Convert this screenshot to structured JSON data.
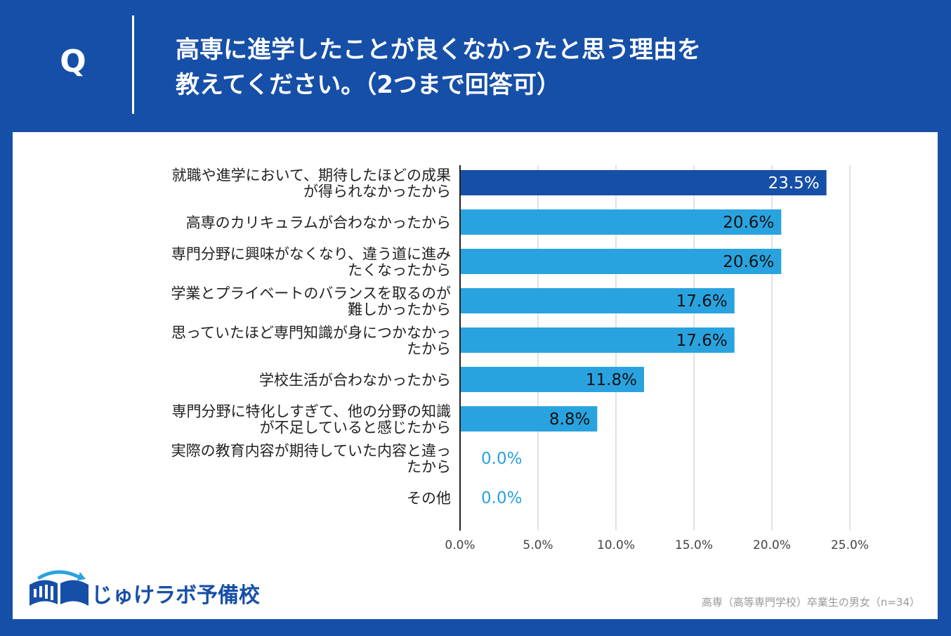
{
  "header": {
    "q_label": "Q",
    "title": "高専に進学したことが良くなかったと思う理由を\n教えてください。（2つまで回答可）"
  },
  "colors": {
    "header_bg": "#164fa7",
    "top_bar": "#164fa7",
    "bar": "#29a3df",
    "zero_label": "#29a3df",
    "grid": "#d9d9d9"
  },
  "chart_data": {
    "type": "bar",
    "orientation": "horizontal",
    "categories": [
      [
        "就職や進学において、期待したほどの成果",
        "が得られなかったから"
      ],
      [
        "高専のカリキュラムが合わなかったから"
      ],
      [
        "専門分野に興味がなくなり、違う道に進み",
        "たくなったから"
      ],
      [
        "学業とプライベートのバランスを取るのが",
        "難しかったから"
      ],
      [
        "思っていたほど専門知識が身につかなかっ",
        "たから"
      ],
      [
        "学校生活が合わなかったから"
      ],
      [
        "専門分野に特化しすぎて、他の分野の知識",
        "が不足していると感じたから"
      ],
      [
        "実際の教育内容が期待していた内容と違っ",
        "たから"
      ],
      [
        "その他"
      ]
    ],
    "values": [
      23.5,
      20.6,
      20.6,
      17.6,
      17.6,
      11.8,
      8.8,
      0.0,
      0.0
    ],
    "value_labels": [
      "23.5%",
      "20.6%",
      "20.6%",
      "17.6%",
      "17.6%",
      "11.8%",
      "8.8%",
      "0.0%",
      "0.0%"
    ],
    "xlim": [
      0,
      25
    ],
    "x_ticks": [
      "0.0%",
      "5.0%",
      "10.0%",
      "15.0%",
      "20.0%",
      "25.0%"
    ],
    "grid": true,
    "legend": false
  },
  "footer": {
    "logo_text": "じゅけラボ予備校",
    "note": "高専（高等専門学校）卒業生の男女（n=34）"
  }
}
